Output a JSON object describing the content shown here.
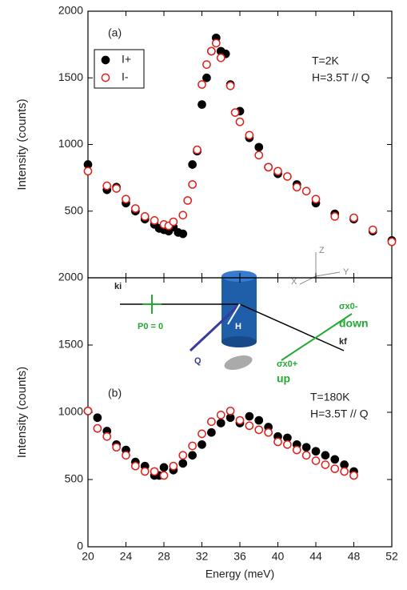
{
  "chart_data": [
    {
      "type": "scatter",
      "ylabel": "Intensity (counts)",
      "xlim": [
        20,
        52
      ],
      "xticks": [
        20,
        24,
        28,
        32,
        36,
        40,
        44,
        48,
        52
      ],
      "ylim": [
        0,
        2000
      ],
      "yticks": [
        500,
        1000,
        1500,
        2000
      ],
      "legend": "upper left",
      "annotations": [
        "(a)",
        "T=2K",
        "H=3.5T // Q"
      ],
      "series": [
        {
          "name": "I+",
          "color": "#000000",
          "filled": true,
          "x": [
            20,
            22,
            23,
            24,
            25,
            26,
            27,
            27.5,
            28,
            28.5,
            29,
            29.5,
            30,
            31,
            31.5,
            32,
            32.5,
            33,
            33.5,
            34,
            34.5,
            35,
            36,
            37,
            38,
            39,
            40,
            42,
            44,
            46,
            48,
            50,
            52
          ],
          "values": [
            850,
            660,
            680,
            560,
            500,
            440,
            400,
            370,
            360,
            350,
            380,
            340,
            330,
            850,
            950,
            1300,
            1500,
            1700,
            1800,
            1700,
            1680,
            1450,
            1250,
            1050,
            980,
            830,
            780,
            700,
            560,
            480,
            440,
            350,
            280
          ]
        },
        {
          "name": "I-",
          "color": "#e0201a",
          "filled": false,
          "x": [
            20,
            22,
            23,
            24,
            25,
            26,
            27,
            28,
            28.5,
            29,
            30,
            30.5,
            31,
            31.5,
            32,
            32.5,
            33,
            33.5,
            34,
            35,
            35.5,
            36,
            37,
            38,
            39,
            40,
            41,
            42,
            43,
            44,
            46,
            48,
            50,
            52
          ],
          "values": [
            800,
            690,
            670,
            590,
            520,
            460,
            430,
            400,
            390,
            420,
            470,
            580,
            700,
            960,
            1450,
            1600,
            1700,
            1760,
            1650,
            1440,
            1240,
            1170,
            1070,
            920,
            830,
            800,
            760,
            680,
            650,
            590,
            460,
            450,
            360,
            270
          ]
        }
      ]
    },
    {
      "type": "scatter",
      "ylabel": "Intensity (counts)",
      "xlabel": "Energy (meV)",
      "xlim": [
        20,
        52
      ],
      "xticks": [
        20,
        24,
        28,
        32,
        36,
        40,
        44,
        48,
        52
      ],
      "ylim": [
        0,
        2000
      ],
      "yticks": [
        0,
        500,
        1000,
        1500,
        2000
      ],
      "annotations": [
        "(b)",
        "T=180K",
        "H=3.5T // Q"
      ],
      "inset_labels": [
        "ki",
        "P0 = 0",
        "H",
        "Q",
        "kf",
        "σx0-",
        "down",
        "σx0+",
        "up",
        "Z",
        "X",
        "Y"
      ],
      "series": [
        {
          "name": "I+",
          "color": "#000000",
          "filled": true,
          "x": [
            20,
            21,
            22,
            23,
            24,
            25,
            26,
            27,
            27.5,
            28,
            29,
            30,
            31,
            32,
            33,
            34,
            35,
            36,
            37,
            38,
            39,
            40,
            41,
            42,
            43,
            44,
            45,
            46,
            47,
            48
          ],
          "values": [
            1010,
            960,
            860,
            760,
            720,
            630,
            600,
            530,
            530,
            590,
            570,
            620,
            680,
            760,
            850,
            920,
            960,
            920,
            970,
            940,
            890,
            820,
            810,
            760,
            740,
            710,
            680,
            650,
            610,
            560
          ]
        },
        {
          "name": "I-",
          "color": "#e0201a",
          "filled": false,
          "x": [
            20,
            21,
            22,
            23,
            24,
            25,
            26,
            27,
            28,
            29,
            30,
            31,
            32,
            33,
            34,
            35,
            36,
            37,
            38,
            39,
            40,
            41,
            42,
            43,
            44,
            45,
            46,
            47,
            48
          ],
          "values": [
            1010,
            880,
            820,
            740,
            680,
            600,
            560,
            560,
            530,
            600,
            680,
            750,
            840,
            930,
            980,
            1010,
            940,
            900,
            870,
            850,
            780,
            760,
            720,
            680,
            640,
            610,
            580,
            560,
            530
          ]
        }
      ]
    }
  ]
}
